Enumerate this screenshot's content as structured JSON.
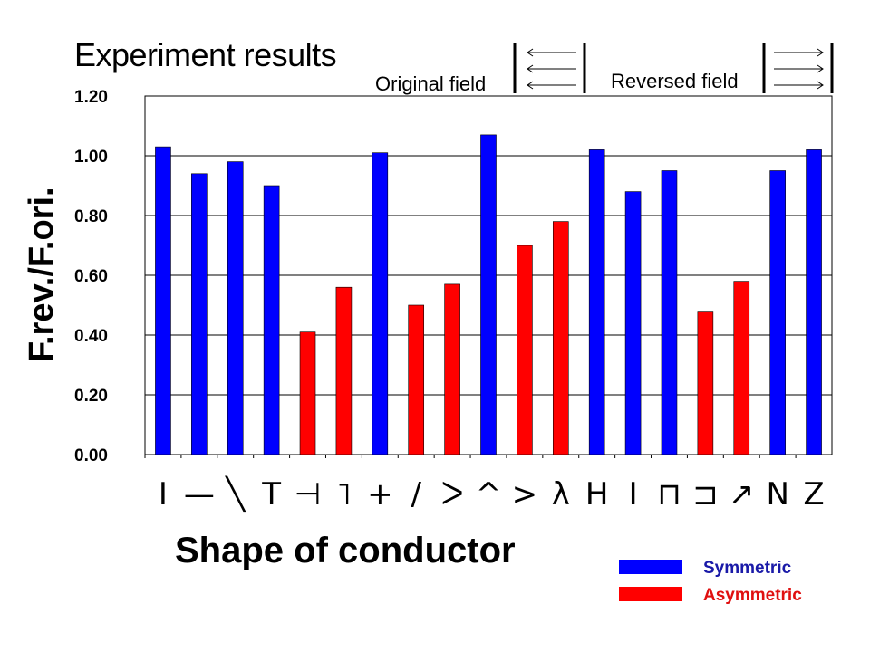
{
  "title": "Experiment results",
  "field_labels": {
    "original": "Original field",
    "reversed": "Reversed field"
  },
  "colors": {
    "symmetric": "#0000ff",
    "asymmetric": "#ff0000",
    "grid": "#000000"
  },
  "legend": [
    {
      "label": "Symmetric",
      "color": "#0000ff",
      "text_color": "#1a1aa8"
    },
    {
      "label": "Asymmetric",
      "color": "#ff0000",
      "text_color": "#e01010"
    }
  ],
  "chart_data": {
    "type": "bar",
    "title": "Experiment results",
    "xlabel": "Shape of conductor",
    "ylabel": "F.rev./F.ori.",
    "ylim": [
      0,
      1.2
    ],
    "yticks": [
      "0.00",
      "0.20",
      "0.40",
      "0.60",
      "0.80",
      "1.00",
      "1.20"
    ],
    "grid": true,
    "legend_position": "bottom-right",
    "categories": [
      "I",
      "—",
      "╲",
      "T",
      "⊣",
      "˥",
      "+",
      "/",
      "ᐳ",
      "^",
      ">",
      "λ",
      "H",
      "I",
      "⊓",
      "⊐",
      "↗",
      "N",
      "Z"
    ],
    "values": [
      1.03,
      0.94,
      0.98,
      0.9,
      0.41,
      0.56,
      1.01,
      0.5,
      0.57,
      1.07,
      0.7,
      0.78,
      1.02,
      0.88,
      0.95,
      0.48,
      0.58,
      0.95,
      1.02
    ],
    "types": [
      "symmetric",
      "symmetric",
      "symmetric",
      "symmetric",
      "asymmetric",
      "asymmetric",
      "symmetric",
      "asymmetric",
      "asymmetric",
      "symmetric",
      "asymmetric",
      "asymmetric",
      "symmetric",
      "symmetric",
      "symmetric",
      "asymmetric",
      "asymmetric",
      "symmetric",
      "symmetric"
    ]
  }
}
